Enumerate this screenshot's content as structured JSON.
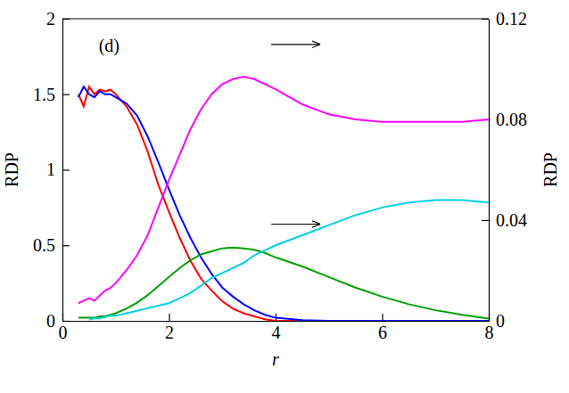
{
  "chart_data": {
    "type": "line",
    "annotations": [
      "(d)"
    ],
    "x_label": "r",
    "y_label": "RDP",
    "y2_label": "RDP",
    "x": [
      0.3,
      0.4,
      0.5,
      0.6,
      0.7,
      0.8,
      0.9,
      1.0,
      1.2,
      1.4,
      1.6,
      1.8,
      2.0,
      2.2,
      2.4,
      2.6,
      2.8,
      3.0,
      3.2,
      3.4,
      3.6,
      3.8,
      4.0,
      4.5,
      5.0,
      5.5,
      6.0,
      6.5,
      7.0,
      7.5,
      8.0
    ],
    "xlim": [
      0,
      8
    ],
    "xticks": [
      0,
      2,
      4,
      6,
      8
    ],
    "ylim": [
      0,
      2
    ],
    "yticks": [
      0,
      0.5,
      1,
      1.5,
      2
    ],
    "y2lim": [
      0,
      0.12
    ],
    "y2ticks": [
      0,
      0.04,
      0.08,
      0.12
    ],
    "grid": false,
    "series": [
      {
        "color": "#ff0000",
        "values": [
          1.5,
          1.42,
          1.55,
          1.5,
          1.53,
          1.52,
          1.53,
          1.5,
          1.42,
          1.3,
          1.12,
          0.9,
          0.72,
          0.55,
          0.4,
          0.28,
          0.2,
          0.13,
          0.08,
          0.05,
          0.03,
          0.01,
          0.0,
          0.0,
          0.0,
          0.0,
          0.0,
          0.0,
          0.0,
          0.0,
          0.0
        ]
      },
      {
        "color": "#0000ff",
        "values": [
          1.48,
          1.55,
          1.5,
          1.48,
          1.52,
          1.5,
          1.5,
          1.48,
          1.44,
          1.36,
          1.22,
          1.05,
          0.87,
          0.7,
          0.55,
          0.42,
          0.31,
          0.22,
          0.16,
          0.11,
          0.07,
          0.04,
          0.02,
          0.005,
          0.0,
          0.0,
          0.0,
          0.0,
          0.0,
          0.0,
          0.0
        ]
      },
      {
        "color": "#00a000",
        "values": [
          0.02,
          0.02,
          0.02,
          0.02,
          0.03,
          0.03,
          0.04,
          0.05,
          0.08,
          0.12,
          0.17,
          0.23,
          0.29,
          0.35,
          0.4,
          0.44,
          0.46,
          0.48,
          0.485,
          0.48,
          0.47,
          0.45,
          0.42,
          0.36,
          0.29,
          0.22,
          0.16,
          0.11,
          0.07,
          0.04,
          0.015
        ]
      },
      {
        "color": "#ff00ff",
        "axis": "y2",
        "values": [
          0.007,
          0.008,
          0.009,
          0.008,
          0.01,
          0.012,
          0.013,
          0.015,
          0.02,
          0.026,
          0.034,
          0.045,
          0.056,
          0.066,
          0.076,
          0.084,
          0.09,
          0.094,
          0.096,
          0.097,
          0.096,
          0.094,
          0.092,
          0.086,
          0.082,
          0.08,
          0.079,
          0.079,
          0.079,
          0.079,
          0.08
        ]
      },
      {
        "color": "#00d0e8",
        "axis": "y2",
        "values": [
          null,
          null,
          0.0005,
          0.001,
          0.001,
          0.0015,
          0.002,
          0.002,
          0.003,
          0.004,
          0.005,
          0.006,
          0.007,
          0.009,
          0.011,
          0.014,
          0.017,
          0.019,
          0.021,
          0.023,
          0.026,
          0.028,
          0.03,
          0.034,
          0.038,
          0.042,
          0.045,
          0.047,
          0.048,
          0.048,
          0.047
        ]
      }
    ]
  }
}
